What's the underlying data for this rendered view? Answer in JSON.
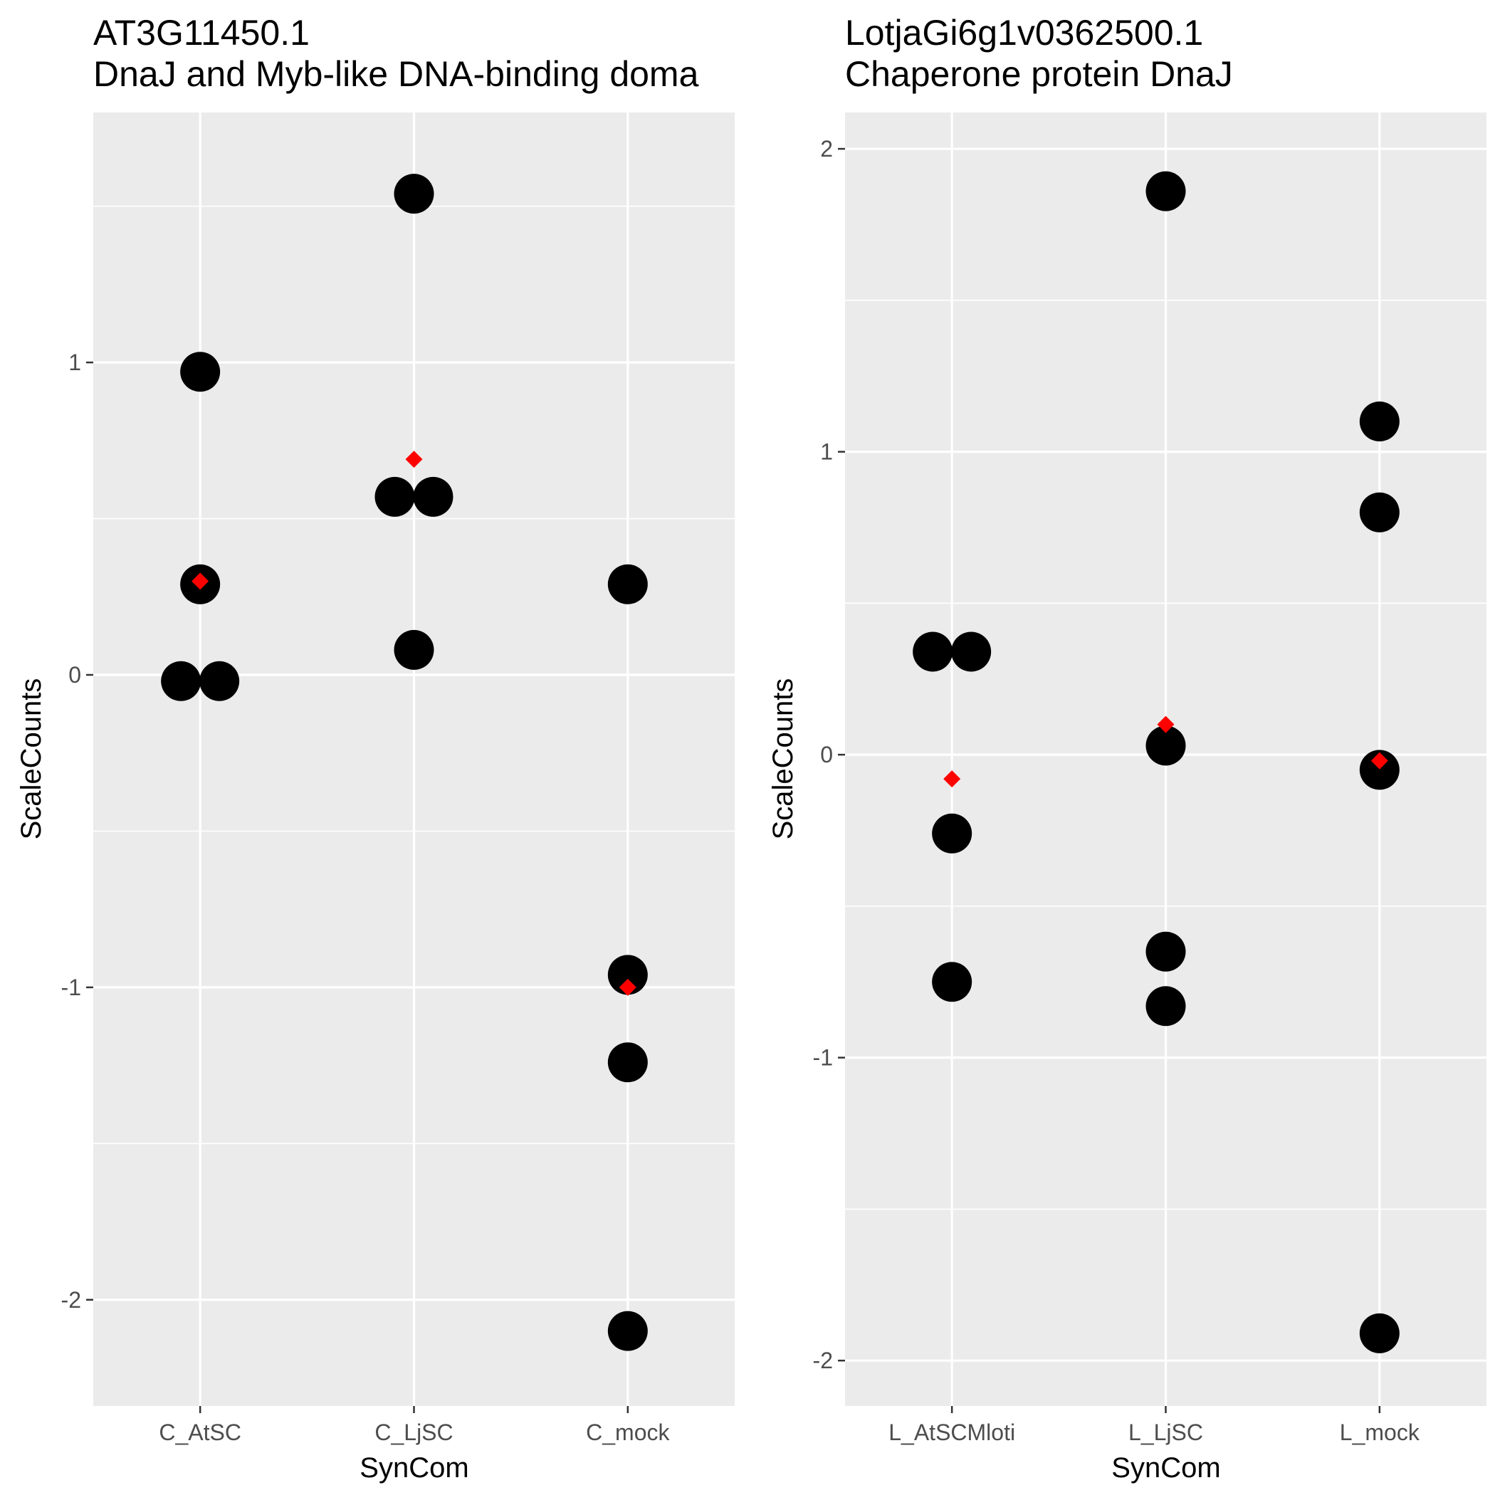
{
  "chart_data": [
    {
      "type": "scatter",
      "title_line1": "AT3G11450.1",
      "title_line2": "DnaJ and Myb-like DNA-binding doma",
      "xlabel": "SynCom",
      "ylabel": "ScaleCounts",
      "categories": [
        "C_AtSC",
        "C_LjSC",
        "C_mock"
      ],
      "ylim": [
        -2.34,
        1.8
      ],
      "yticks": [
        -2,
        -1,
        0,
        1
      ],
      "ytick_labels": [
        "-2",
        "-1",
        "0",
        "1"
      ],
      "yminor": [
        -1.5,
        -0.5,
        0.5,
        1.5
      ],
      "points": [
        {
          "category": "C_AtSC",
          "y": 0.97
        },
        {
          "category": "C_AtSC",
          "y": 0.29
        },
        {
          "category": "C_AtSC",
          "y": -0.02
        },
        {
          "category": "C_AtSC",
          "y": -0.02
        },
        {
          "category": "C_LjSC",
          "y": 1.54
        },
        {
          "category": "C_LjSC",
          "y": 0.57
        },
        {
          "category": "C_LjSC",
          "y": 0.57
        },
        {
          "category": "C_LjSC",
          "y": 0.08
        },
        {
          "category": "C_mock",
          "y": 0.29
        },
        {
          "category": "C_mock",
          "y": -0.96
        },
        {
          "category": "C_mock",
          "y": -1.24
        },
        {
          "category": "C_mock",
          "y": -2.1
        }
      ],
      "means": [
        {
          "category": "C_AtSC",
          "y": 0.3
        },
        {
          "category": "C_LjSC",
          "y": 0.69
        },
        {
          "category": "C_mock",
          "y": -1.0
        }
      ],
      "point_color": "#000000",
      "mean_color": "#ff0000",
      "panel_color": "#ebebeb",
      "grid": true
    },
    {
      "type": "scatter",
      "title_line1": "LotjaGi6g1v0362500.1",
      "title_line2": "Chaperone protein DnaJ",
      "xlabel": "SynCom",
      "ylabel": "ScaleCounts",
      "categories": [
        "L_AtSCMloti",
        "L_LjSC",
        "L_mock"
      ],
      "ylim": [
        -2.15,
        2.12
      ],
      "yticks": [
        -2,
        -1,
        0,
        1,
        2
      ],
      "ytick_labels": [
        "-2",
        "-1",
        "0",
        "1",
        "2"
      ],
      "yminor": [
        -1.5,
        -0.5,
        0.5,
        1.5
      ],
      "points": [
        {
          "category": "L_AtSCMloti",
          "y": 0.34
        },
        {
          "category": "L_AtSCMloti",
          "y": 0.34
        },
        {
          "category": "L_AtSCMloti",
          "y": -0.26
        },
        {
          "category": "L_AtSCMloti",
          "y": -0.75
        },
        {
          "category": "L_LjSC",
          "y": 1.86
        },
        {
          "category": "L_LjSC",
          "y": 0.03
        },
        {
          "category": "L_LjSC",
          "y": -0.65
        },
        {
          "category": "L_LjSC",
          "y": -0.83
        },
        {
          "category": "L_mock",
          "y": 1.1
        },
        {
          "category": "L_mock",
          "y": 0.8
        },
        {
          "category": "L_mock",
          "y": -0.05
        },
        {
          "category": "L_mock",
          "y": -1.91
        }
      ],
      "means": [
        {
          "category": "L_AtSCMloti",
          "y": -0.08
        },
        {
          "category": "L_LjSC",
          "y": 0.1
        },
        {
          "category": "L_mock",
          "y": -0.02
        }
      ],
      "point_color": "#000000",
      "mean_color": "#ff0000",
      "panel_color": "#ebebeb",
      "grid": true
    }
  ]
}
